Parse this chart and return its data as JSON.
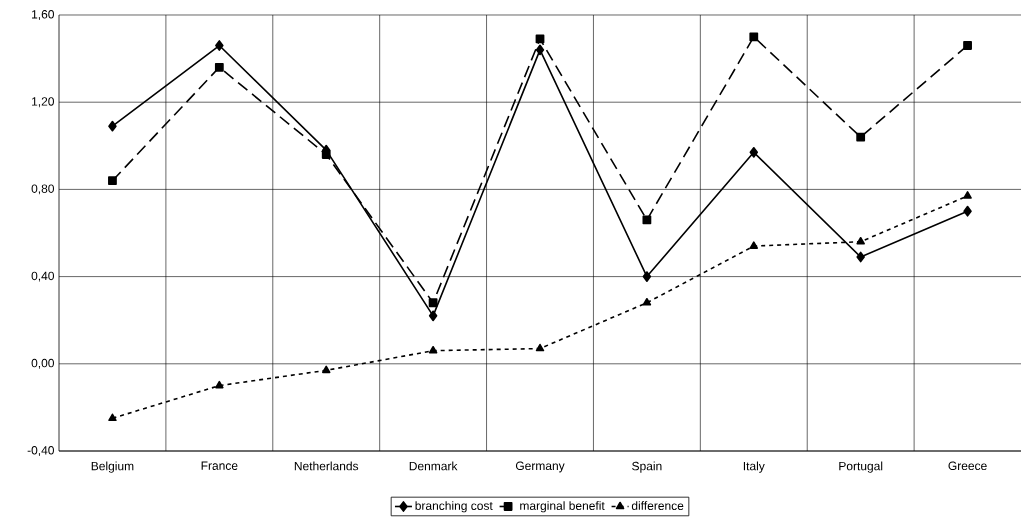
{
  "chart_data": {
    "type": "line",
    "categories": [
      "Belgium",
      "France",
      "Netherlands",
      "Denmark",
      "Germany",
      "Spain",
      "Italy",
      "Portugal",
      "Greece"
    ],
    "series": [
      {
        "name": "branching cost",
        "color": "#000000",
        "marker": "diamond",
        "line_style": "solid",
        "values": [
          1.09,
          1.46,
          0.98,
          0.22,
          1.44,
          0.4,
          0.97,
          0.49,
          0.7
        ]
      },
      {
        "name": "marginal benefit",
        "color": "#000000",
        "marker": "square",
        "line_style": "dashed",
        "values": [
          0.84,
          1.36,
          0.96,
          0.28,
          1.49,
          0.66,
          1.5,
          1.04,
          1.46
        ]
      },
      {
        "name": "difference",
        "color": "#000000",
        "marker": "triangle",
        "line_style": "dotted",
        "values": [
          -0.25,
          -0.1,
          -0.03,
          0.06,
          0.07,
          0.28,
          0.54,
          0.56,
          0.77
        ]
      }
    ],
    "ylim": [
      -0.4,
      1.6
    ],
    "yticks": [
      {
        "value": -0.4,
        "label": "-0,40"
      },
      {
        "value": 0,
        "label": "0,00"
      },
      {
        "value": 0.4,
        "label": "0,40"
      },
      {
        "value": 0.8,
        "label": "0,80"
      },
      {
        "value": 1.2,
        "label": "1,20"
      },
      {
        "value": 1.6,
        "label": "1,60"
      }
    ],
    "grid": true,
    "legend": "bottom"
  }
}
